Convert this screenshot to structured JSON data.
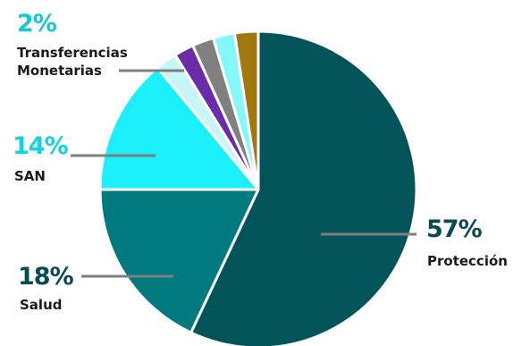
{
  "chart_data": {
    "type": "pie",
    "slices": [
      {
        "label": "Protección",
        "value": 57,
        "value_label": "57%",
        "color": "#02535a",
        "label_color": "#0a4a52"
      },
      {
        "label": "Salud",
        "value": 18,
        "value_label": "18%",
        "color": "#007a7f",
        "label_color": "#0a4a52"
      },
      {
        "label": "SAN",
        "value": 14,
        "value_label": "14%",
        "color": "#1bf0fa",
        "label_color": "#14d2df"
      },
      {
        "label": "",
        "value": 2.2,
        "value_label": "",
        "color": "#c6f6fa"
      },
      {
        "label": "Transferencias Monetarias",
        "value": 2,
        "value_label": "2%",
        "color": "#6a2ca8",
        "label_color": "#14c8d6"
      },
      {
        "label": "",
        "value": 2.2,
        "value_label": "",
        "color": "#808080"
      },
      {
        "label": "",
        "value": 2.2,
        "value_label": "",
        "color": "#84f7fb"
      },
      {
        "label": "",
        "value": 2.4,
        "value_label": "",
        "color": "#a0780f"
      }
    ],
    "leader_line_color": "#7f7f7f",
    "legend": "none"
  }
}
